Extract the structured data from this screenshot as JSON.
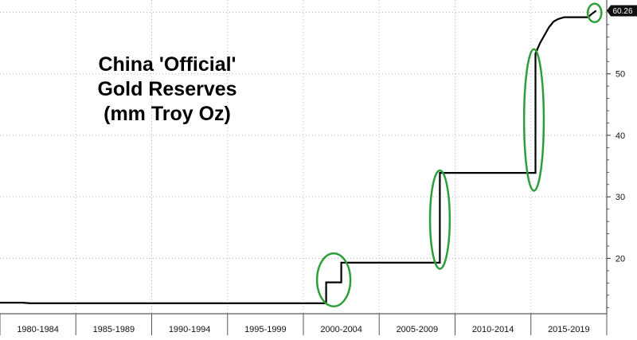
{
  "chart_data": {
    "type": "line",
    "title_lines": [
      "China 'Official'",
      "Gold Reserves",
      "(mm Troy Oz)"
    ],
    "x_categories": [
      "1980-1984",
      "1985-1989",
      "1990-1994",
      "1995-1999",
      "2000-2004",
      "2005-2009",
      "2010-2014",
      "2015-2019"
    ],
    "y_axis": {
      "position": "right",
      "range": [
        11,
        62
      ],
      "ticks": [
        20,
        30,
        40,
        50
      ]
    },
    "grid": true,
    "last_value_label": "60.26",
    "series": [
      {
        "x": [
          1980.0,
          1981.5,
          1982.0,
          2001.5,
          2001.5,
          2002.5,
          2002.5,
          2009.0,
          2009.0,
          2015.3,
          2015.3,
          2015.6,
          2015.9,
          2016.2,
          2016.5,
          2016.8,
          2017.2,
          2018.8,
          2018.9,
          2019.1,
          2019.3
        ],
        "y": [
          12.8,
          12.8,
          12.7,
          12.7,
          16.1,
          16.1,
          19.3,
          19.3,
          33.9,
          33.9,
          53.3,
          55.0,
          56.3,
          57.6,
          58.5,
          58.9,
          59.2,
          59.2,
          59.5,
          59.9,
          60.26
        ],
        "color": "#000000"
      }
    ],
    "highlights": [
      {
        "cx": 2002.0,
        "cy": 16.5,
        "rx": 1.1,
        "ry": 4.3
      },
      {
        "cx": 2009.0,
        "cy": 26.3,
        "rx": 0.65,
        "ry": 8.0
      },
      {
        "cx": 2015.2,
        "cy": 42.5,
        "rx": 0.65,
        "ry": 11.5
      },
      {
        "cx": 2019.2,
        "cy": 59.9,
        "rx": 0.45,
        "ry": 1.5
      }
    ],
    "highlight_color": "#2e9e3a"
  }
}
